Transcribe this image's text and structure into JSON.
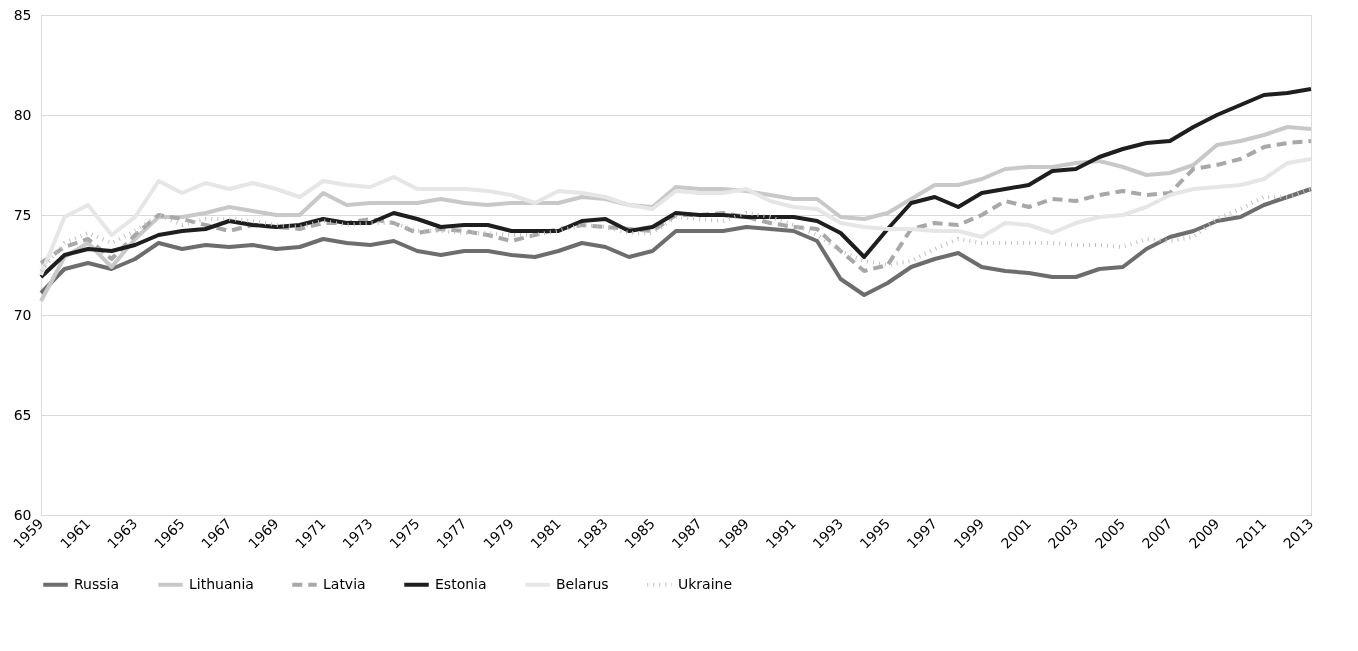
{
  "chart_data": {
    "type": "line",
    "x": [
      1959,
      1960,
      1961,
      1962,
      1963,
      1964,
      1965,
      1966,
      1967,
      1968,
      1969,
      1970,
      1971,
      1972,
      1973,
      1974,
      1975,
      1976,
      1977,
      1978,
      1979,
      1980,
      1981,
      1982,
      1983,
      1984,
      1985,
      1986,
      1987,
      1988,
      1989,
      1990,
      1991,
      1992,
      1993,
      1994,
      1995,
      1996,
      1997,
      1998,
      1999,
      2000,
      2001,
      2002,
      2003,
      2004,
      2005,
      2006,
      2007,
      2008,
      2009,
      2010,
      2011,
      2012,
      2013
    ],
    "xlim": [
      1959,
      2013
    ],
    "xticks": [
      1959,
      1961,
      1963,
      1965,
      1967,
      1969,
      1971,
      1973,
      1975,
      1977,
      1979,
      1981,
      1983,
      1985,
      1987,
      1989,
      1991,
      1993,
      1995,
      1997,
      1999,
      2001,
      2003,
      2005,
      2007,
      2009,
      2011,
      2013
    ],
    "ylim": [
      60,
      85
    ],
    "yticks": [
      60,
      65,
      70,
      75,
      80,
      85
    ],
    "grid": "y",
    "legend": "bottom",
    "marker": "none",
    "series": [
      {
        "name": "Russia",
        "color": "#6d6d6d",
        "line_style": "solid",
        "values": [
          71.1,
          72.3,
          72.6,
          72.3,
          72.8,
          73.6,
          73.3,
          73.5,
          73.4,
          73.5,
          73.3,
          73.4,
          73.8,
          73.6,
          73.5,
          73.7,
          73.2,
          73.0,
          73.2,
          73.2,
          73.0,
          72.9,
          73.2,
          73.6,
          73.4,
          72.9,
          73.2,
          74.2,
          74.2,
          74.2,
          74.4,
          74.3,
          74.2,
          73.7,
          71.8,
          71.0,
          71.6,
          72.4,
          72.8,
          73.1,
          72.4,
          72.2,
          72.1,
          71.9,
          71.9,
          72.3,
          72.4,
          73.3,
          73.9,
          74.2,
          74.7,
          74.9,
          75.5,
          75.9,
          76.3
        ]
      },
      {
        "name": "Lithuania",
        "color": "#c8c8c8",
        "line_style": "solid",
        "values": [
          70.7,
          72.9,
          73.6,
          72.4,
          73.8,
          74.9,
          74.9,
          75.1,
          75.4,
          75.2,
          75.0,
          75.0,
          76.1,
          75.5,
          75.6,
          75.6,
          75.6,
          75.8,
          75.6,
          75.5,
          75.6,
          75.6,
          75.6,
          75.9,
          75.8,
          75.5,
          75.4,
          76.4,
          76.3,
          76.3,
          76.2,
          76.0,
          75.8,
          75.8,
          74.9,
          74.8,
          75.1,
          75.8,
          76.5,
          76.5,
          76.8,
          77.3,
          77.4,
          77.4,
          77.6,
          77.7,
          77.4,
          77.0,
          77.1,
          77.5,
          78.5,
          78.7,
          79.0,
          79.4,
          79.3
        ]
      },
      {
        "name": "Latvia",
        "color": "#a8a8a8",
        "line_style": "dashed",
        "values": [
          72.6,
          73.4,
          73.8,
          72.8,
          74.0,
          75.0,
          74.8,
          74.5,
          74.2,
          74.5,
          74.4,
          74.3,
          74.6,
          74.6,
          74.8,
          74.6,
          74.1,
          74.3,
          74.2,
          74.0,
          73.7,
          74.0,
          74.3,
          74.5,
          74.4,
          74.3,
          74.2,
          75.0,
          75.0,
          75.1,
          74.9,
          74.6,
          74.4,
          74.3,
          73.2,
          72.2,
          72.5,
          74.3,
          74.6,
          74.5,
          75.0,
          75.7,
          75.4,
          75.8,
          75.7,
          76.0,
          76.2,
          76.0,
          76.1,
          77.3,
          77.5,
          77.8,
          78.4,
          78.6,
          78.7
        ]
      },
      {
        "name": "Estonia",
        "color": "#1e1e1e",
        "line_style": "solid",
        "values": [
          71.9,
          73.0,
          73.3,
          73.2,
          73.5,
          74.0,
          74.2,
          74.3,
          74.7,
          74.5,
          74.4,
          74.5,
          74.8,
          74.6,
          74.6,
          75.1,
          74.8,
          74.4,
          74.5,
          74.5,
          74.2,
          74.2,
          74.2,
          74.7,
          74.8,
          74.2,
          74.4,
          75.1,
          75.0,
          75.0,
          74.9,
          74.9,
          74.9,
          74.7,
          74.1,
          72.9,
          74.3,
          75.6,
          75.9,
          75.4,
          76.1,
          76.3,
          76.5,
          77.2,
          77.3,
          77.9,
          78.3,
          78.6,
          78.7,
          79.4,
          80.0,
          80.5,
          81.0,
          81.1,
          81.3
        ]
      },
      {
        "name": "Belarus",
        "color": "#e6e6e6",
        "line_style": "solid",
        "values": [
          72.0,
          74.9,
          75.5,
          74.0,
          74.9,
          76.7,
          76.1,
          76.6,
          76.3,
          76.6,
          76.3,
          75.9,
          76.7,
          76.5,
          76.4,
          76.9,
          76.3,
          76.3,
          76.3,
          76.2,
          76.0,
          75.6,
          76.2,
          76.1,
          75.9,
          75.5,
          75.3,
          76.2,
          76.1,
          76.1,
          76.3,
          75.7,
          75.4,
          75.3,
          74.6,
          74.4,
          74.3,
          74.3,
          74.2,
          74.2,
          73.9,
          74.6,
          74.5,
          74.1,
          74.6,
          74.9,
          75.0,
          75.4,
          76.0,
          76.3,
          76.4,
          76.5,
          76.8,
          77.6,
          77.8
        ]
      },
      {
        "name": "Ukraine",
        "color": "#c0c0c0",
        "line_style": "dotted",
        "values": [
          72.2,
          73.6,
          74.1,
          73.6,
          74.2,
          75.0,
          74.5,
          74.8,
          74.8,
          74.7,
          74.5,
          74.4,
          74.7,
          74.5,
          74.6,
          74.6,
          74.2,
          74.2,
          74.1,
          74.1,
          74.0,
          74.0,
          74.2,
          74.5,
          74.4,
          74.1,
          74.1,
          74.9,
          74.8,
          74.7,
          75.1,
          74.9,
          74.5,
          74.0,
          73.2,
          72.7,
          72.5,
          72.7,
          73.3,
          73.8,
          73.6,
          73.6,
          73.6,
          73.6,
          73.5,
          73.5,
          73.4,
          73.8,
          73.7,
          73.9,
          74.8,
          75.3,
          75.9,
          75.9,
          76.3
        ]
      }
    ]
  }
}
